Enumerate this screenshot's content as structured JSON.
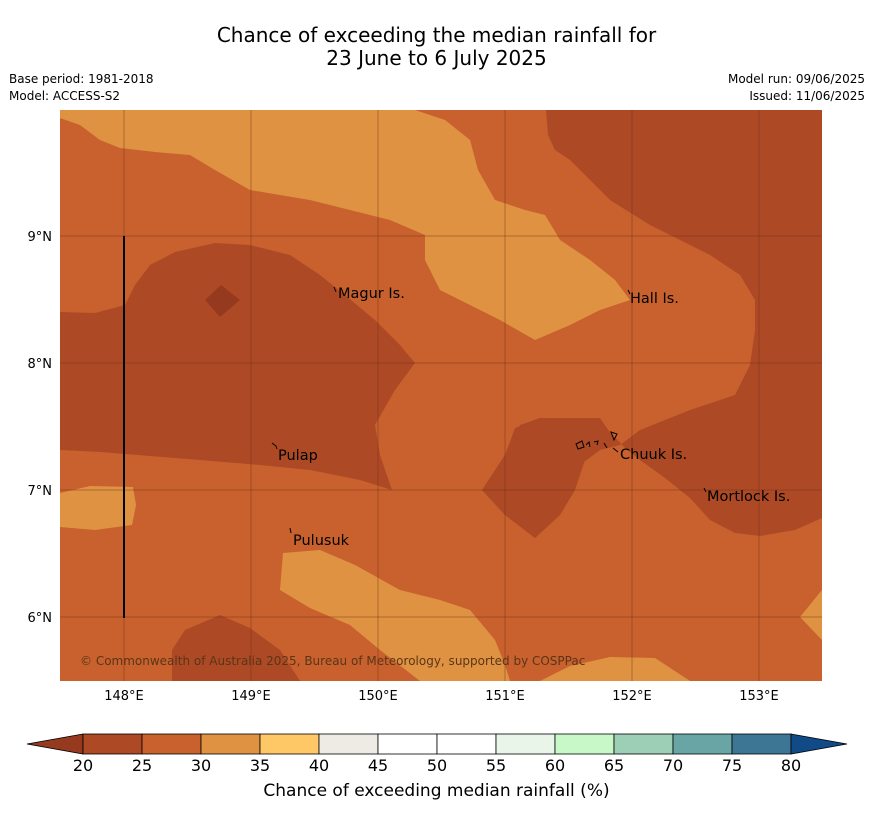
{
  "title": {
    "line1": "Chance of exceeding the median rainfall for",
    "line2": "23 June to 6 July 2025"
  },
  "meta": {
    "base_period": "Base period: 1981-2018",
    "model": "Model: ACCESS-S2",
    "model_run": "Model run: 09/06/2025",
    "issued": "Issued: 11/06/2025"
  },
  "map": {
    "x_ticks": [
      "148°E",
      "149°E",
      "150°E",
      "151°E",
      "152°E",
      "153°E"
    ],
    "y_ticks": [
      "9°N",
      "8°N",
      "7°N",
      "6°N"
    ],
    "places": {
      "magur": "Magur Is.",
      "hall": "Hall Is.",
      "pulap": "Pulap",
      "chuuk": "Chuuk Is.",
      "mortlock": "Mortlock Is.",
      "pulusuk": "Pulusuk"
    },
    "copyright": "© Commonwealth of Australia 2025, Bureau of Meteorology, supported by COSPPac",
    "colors": {
      "c20_25": "#ad4a25",
      "c25_30": "#c9612e",
      "c30_35": "#df9342",
      "c15_20": "#953a1f"
    }
  },
  "colorbar": {
    "label": "Chance of exceeding median rainfall (%)",
    "ticks": [
      "20",
      "25",
      "30",
      "35",
      "40",
      "45",
      "50",
      "55",
      "60",
      "65",
      "70",
      "75",
      "80"
    ],
    "colors": [
      "#ad4a25",
      "#c9612e",
      "#df9342",
      "#fdc865",
      "#eeeae4",
      "#ffffff",
      "#ffffff",
      "#eaf5ea",
      "#c8f8c8",
      "#9ccfb6",
      "#6aa5a5",
      "#3d7695"
    ],
    "low_color": "#953a1f",
    "high_color": "#104b87"
  }
}
